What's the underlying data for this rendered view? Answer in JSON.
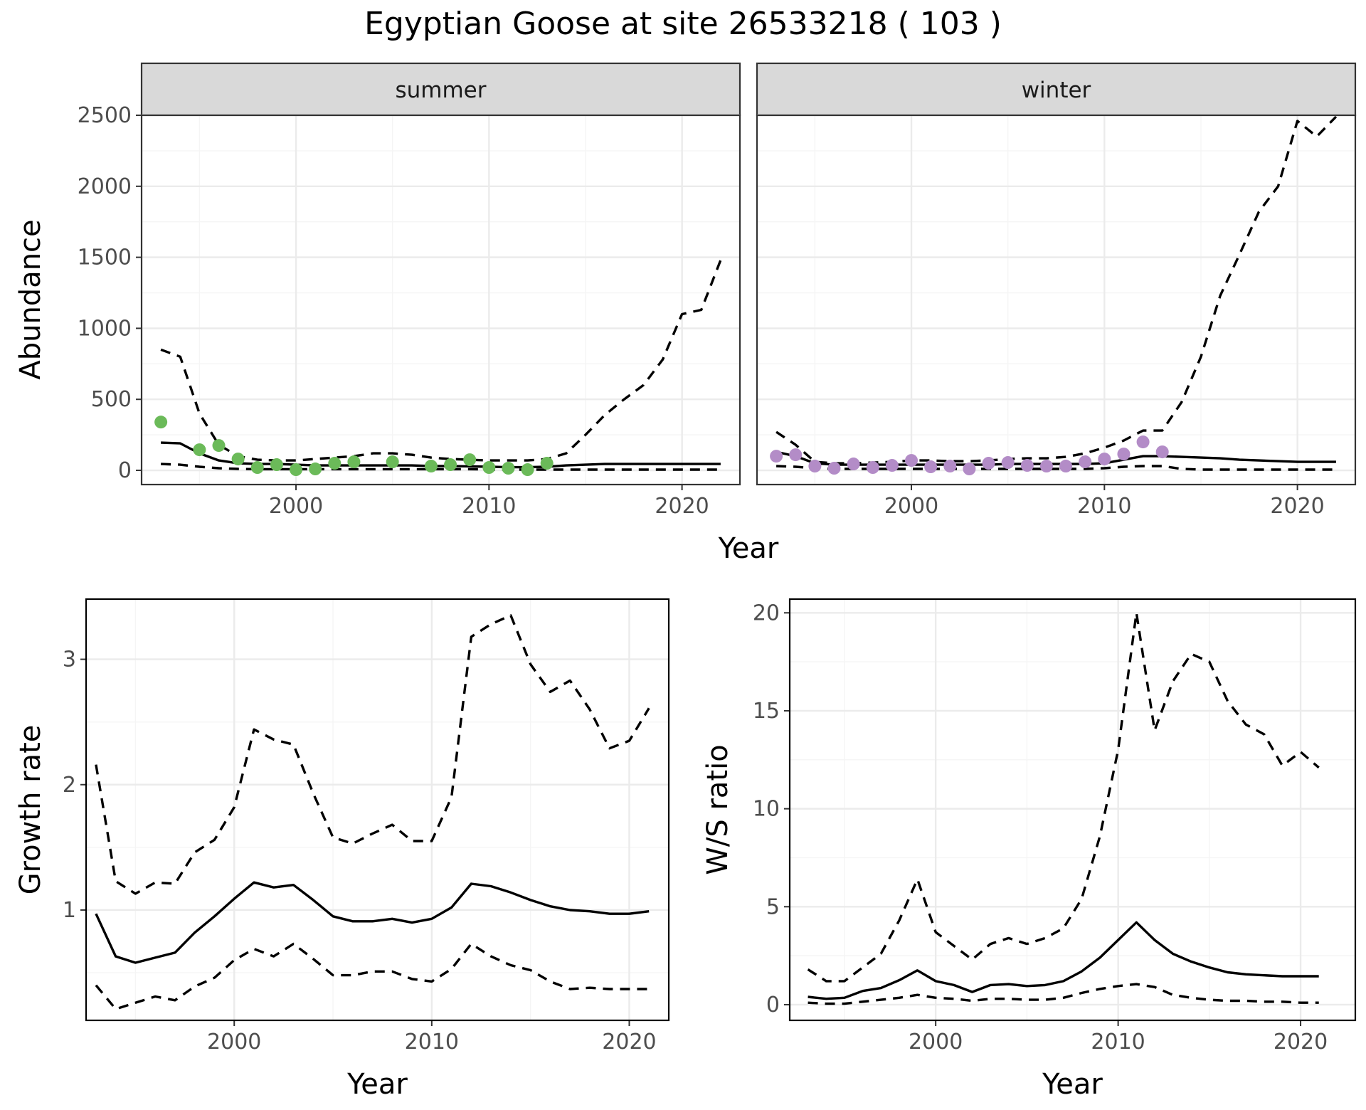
{
  "title": "Egyptian Goose at site 26533218 ( 103 )",
  "colors": {
    "summer_points": "#6bba59",
    "winter_points": "#b38cc7",
    "line": "#000000",
    "panel_border": "#333333",
    "strip_fill": "#d9d9d9",
    "grid_major": "#ebebeb",
    "grid_minor": "#f5f5f5",
    "tick_text": "#4d4d4d"
  },
  "chart_data": [
    {
      "type": "line",
      "panel": "abundance",
      "facets": [
        "summer",
        "winter"
      ],
      "xlabel": "Year",
      "ylabel": "Abundance",
      "xlim": [
        1992,
        2023
      ],
      "ylim": [
        -100,
        2500
      ],
      "x_ticks": [
        2000,
        2010,
        2020
      ],
      "y_ticks": [
        0,
        500,
        1000,
        1500,
        2000,
        2500
      ],
      "grid": true,
      "line_years": [
        1993,
        1994,
        1995,
        1996,
        1997,
        1998,
        1999,
        2000,
        2001,
        2002,
        2003,
        2004,
        2005,
        2006,
        2007,
        2008,
        2009,
        2010,
        2011,
        2012,
        2013,
        2014,
        2015,
        2016,
        2017,
        2018,
        2019,
        2020,
        2021,
        2022
      ],
      "summer": {
        "estimate": [
          195,
          190,
          120,
          70,
          50,
          45,
          45,
          40,
          35,
          35,
          35,
          35,
          35,
          35,
          30,
          30,
          28,
          25,
          22,
          22,
          25,
          35,
          40,
          45,
          45,
          45,
          45,
          45,
          45,
          45
        ],
        "upper": [
          850,
          800,
          400,
          180,
          100,
          75,
          70,
          70,
          80,
          90,
          100,
          120,
          120,
          110,
          90,
          80,
          75,
          70,
          70,
          70,
          80,
          120,
          250,
          390,
          500,
          600,
          780,
          1100,
          1130,
          1480
        ],
        "lower": [
          45,
          40,
          25,
          15,
          10,
          8,
          8,
          8,
          8,
          8,
          8,
          8,
          8,
          8,
          8,
          8,
          8,
          6,
          5,
          5,
          5,
          5,
          5,
          5,
          5,
          5,
          5,
          5,
          5,
          5
        ],
        "points": {
          "x": [
            1993,
            1995,
            1996,
            1997,
            1998,
            1999,
            2000,
            2001,
            2002,
            2003,
            2005,
            2007,
            2008,
            2009,
            2010,
            2011,
            2012,
            2013
          ],
          "y": [
            340,
            145,
            175,
            80,
            20,
            40,
            5,
            10,
            50,
            60,
            60,
            30,
            40,
            75,
            20,
            15,
            5,
            50
          ]
        }
      },
      "winter": {
        "estimate": [
          130,
          100,
          50,
          40,
          40,
          40,
          40,
          40,
          40,
          40,
          40,
          40,
          45,
          45,
          45,
          45,
          45,
          50,
          75,
          100,
          100,
          95,
          90,
          85,
          75,
          70,
          65,
          60,
          60,
          60
        ],
        "upper": [
          270,
          180,
          60,
          50,
          50,
          55,
          60,
          70,
          70,
          65,
          65,
          70,
          80,
          85,
          85,
          95,
          120,
          160,
          210,
          280,
          280,
          480,
          800,
          1230,
          1520,
          1820,
          2000,
          2460,
          2350,
          2490
        ],
        "lower": [
          30,
          25,
          15,
          10,
          10,
          10,
          10,
          10,
          10,
          10,
          10,
          10,
          10,
          10,
          10,
          10,
          10,
          15,
          25,
          30,
          30,
          10,
          5,
          5,
          5,
          5,
          5,
          5,
          5,
          5
        ],
        "points": {
          "x": [
            1993,
            1994,
            1995,
            1996,
            1997,
            1998,
            1999,
            2000,
            2001,
            2002,
            2003,
            2004,
            2005,
            2006,
            2007,
            2008,
            2009,
            2010,
            2011,
            2012,
            2013
          ],
          "y": [
            100,
            110,
            30,
            15,
            45,
            20,
            35,
            70,
            25,
            30,
            10,
            50,
            55,
            35,
            30,
            30,
            60,
            80,
            115,
            200,
            130
          ]
        }
      }
    },
    {
      "type": "line",
      "panel": "growth",
      "xlabel": "Year",
      "ylabel": "Growth rate",
      "xlim": [
        1992.5,
        2022
      ],
      "ylim": [
        0.12,
        3.48
      ],
      "x_ticks": [
        2000,
        2010,
        2020
      ],
      "y_ticks": [
        1,
        2,
        3
      ],
      "grid": true,
      "x": [
        1993,
        1994,
        1995,
        1996,
        1997,
        1998,
        1999,
        2000,
        2001,
        2002,
        2003,
        2004,
        2005,
        2006,
        2007,
        2008,
        2009,
        2010,
        2011,
        2012,
        2013,
        2014,
        2015,
        2016,
        2017,
        2018,
        2019,
        2020,
        2021
      ],
      "estimate": [
        0.97,
        0.63,
        0.58,
        0.62,
        0.66,
        0.82,
        0.95,
        1.09,
        1.22,
        1.18,
        1.2,
        1.08,
        0.95,
        0.91,
        0.91,
        0.93,
        0.9,
        0.93,
        1.02,
        1.21,
        1.19,
        1.14,
        1.08,
        1.03,
        1.0,
        0.99,
        0.97,
        0.97,
        0.99
      ],
      "upper": [
        2.16,
        1.23,
        1.13,
        1.22,
        1.21,
        1.46,
        1.56,
        1.82,
        2.44,
        2.36,
        2.32,
        1.93,
        1.58,
        1.53,
        1.61,
        1.68,
        1.55,
        1.55,
        1.9,
        3.18,
        3.28,
        3.35,
        2.96,
        2.74,
        2.83,
        2.6,
        2.29,
        2.35,
        2.61
      ],
      "lower": [
        0.4,
        0.21,
        0.26,
        0.31,
        0.28,
        0.39,
        0.46,
        0.6,
        0.69,
        0.63,
        0.73,
        0.61,
        0.48,
        0.48,
        0.51,
        0.51,
        0.45,
        0.43,
        0.53,
        0.73,
        0.63,
        0.56,
        0.52,
        0.43,
        0.37,
        0.38,
        0.37,
        0.37,
        0.37
      ]
    },
    {
      "type": "line",
      "panel": "ratio",
      "xlabel": "Year",
      "ylabel": "W/S ratio",
      "xlim": [
        1992,
        2023
      ],
      "ylim": [
        -0.8,
        20.7
      ],
      "x_ticks": [
        2000,
        2010,
        2020
      ],
      "y_ticks": [
        0,
        5,
        10,
        15,
        20
      ],
      "grid": true,
      "x": [
        1993,
        1994,
        1995,
        1996,
        1997,
        1998,
        1999,
        2000,
        2001,
        2002,
        2003,
        2004,
        2005,
        2006,
        2007,
        2008,
        2009,
        2010,
        2011,
        2012,
        2013,
        2014,
        2015,
        2016,
        2017,
        2018,
        2019,
        2020,
        2021
      ],
      "estimate": [
        0.4,
        0.3,
        0.35,
        0.7,
        0.85,
        1.25,
        1.75,
        1.2,
        1.0,
        0.65,
        1.0,
        1.05,
        0.95,
        1.0,
        1.2,
        1.7,
        2.4,
        3.3,
        4.2,
        3.3,
        2.6,
        2.2,
        1.9,
        1.65,
        1.55,
        1.5,
        1.45,
        1.45,
        1.45
      ],
      "upper": [
        1.8,
        1.2,
        1.2,
        1.9,
        2.6,
        4.3,
        6.4,
        3.7,
        3.0,
        2.3,
        3.1,
        3.4,
        3.1,
        3.4,
        3.9,
        5.4,
        8.6,
        13.0,
        20.0,
        14.0,
        16.5,
        17.9,
        17.5,
        15.5,
        14.3,
        13.8,
        12.2,
        12.9,
        12.1
      ],
      "lower": [
        0.1,
        0.05,
        0.05,
        0.15,
        0.25,
        0.35,
        0.5,
        0.35,
        0.3,
        0.2,
        0.3,
        0.3,
        0.25,
        0.25,
        0.35,
        0.6,
        0.8,
        0.95,
        1.05,
        0.9,
        0.5,
        0.35,
        0.25,
        0.2,
        0.2,
        0.15,
        0.15,
        0.1,
        0.1
      ]
    }
  ]
}
